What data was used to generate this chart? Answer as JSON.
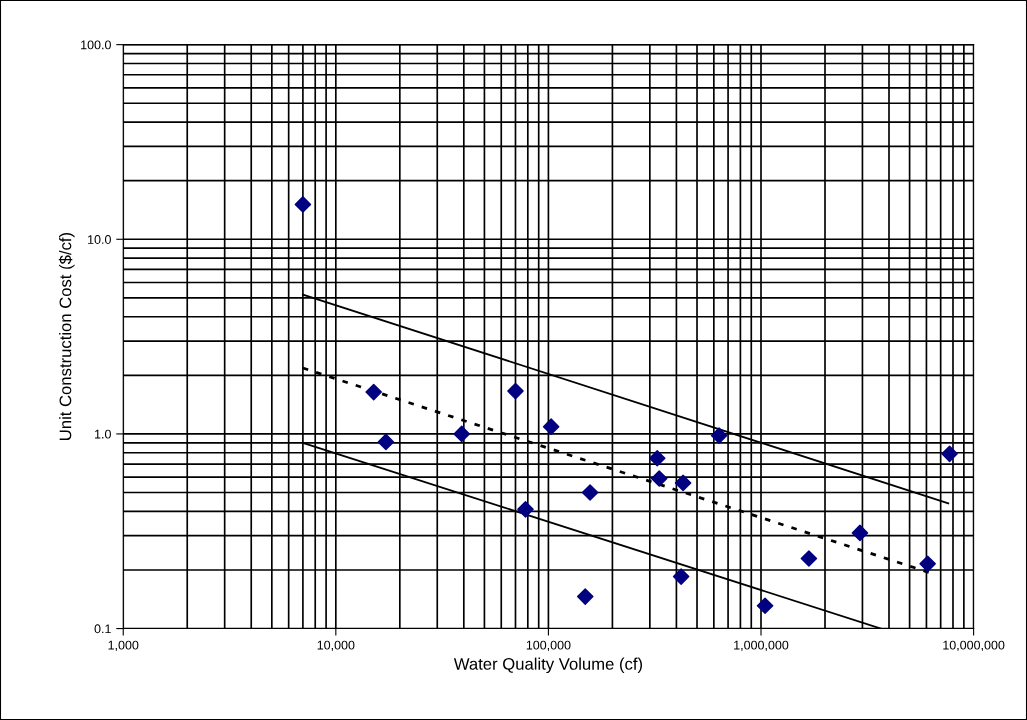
{
  "chart_data": {
    "type": "scatter",
    "xlabel": "Water Quality Volume (cf)",
    "ylabel": "Unit Construction Cost ($/cf)",
    "log": "xy",
    "grid": true,
    "xlim": [
      1000,
      10000000
    ],
    "xticks": [
      {
        "value": 1000,
        "label": "1,000"
      },
      {
        "value": 10000,
        "label": "10,000"
      },
      {
        "value": 100000,
        "label": "100,000"
      },
      {
        "value": 1000000,
        "label": "1,000,000"
      },
      {
        "value": 10000000,
        "label": "10,000,000"
      }
    ],
    "ylim": [
      0.1,
      100
    ],
    "yticks": [
      {
        "value": 0.1,
        "label": "0.1"
      },
      {
        "value": 1,
        "label": "1.0"
      },
      {
        "value": 10,
        "label": "10.0"
      },
      {
        "value": 100,
        "label": "100.0"
      }
    ],
    "series": [
      {
        "marker": "diamond",
        "color": "#000080",
        "x": [
          7000,
          15070,
          17200,
          39100,
          70000,
          78000,
          103000,
          157000,
          149000,
          325000,
          332000,
          430000,
          421000,
          635000,
          1045000,
          1680000,
          2920000,
          6080000,
          7710000
        ],
        "values": [
          15.1,
          1.64,
          0.91,
          1.0,
          1.66,
          0.41,
          1.09,
          0.5,
          0.146,
          0.75,
          0.59,
          0.56,
          0.185,
          0.98,
          0.131,
          0.229,
          0.31,
          0.215,
          0.79
        ]
      },
      {
        "type": "line",
        "marker": "none",
        "line_style": "solid",
        "color": "#000000",
        "x": [
          7000,
          7600000
        ],
        "values": [
          5.2,
          0.44
        ]
      },
      {
        "type": "line",
        "marker": "none",
        "line_style": "dashed",
        "color": "#000000",
        "x": [
          7000,
          6560000
        ],
        "values": [
          2.18,
          0.19
        ]
      },
      {
        "type": "line",
        "marker": "none",
        "line_style": "solid",
        "color": "#000000",
        "x": [
          7000,
          3660000
        ],
        "values": [
          0.9,
          0.1
        ]
      }
    ]
  }
}
